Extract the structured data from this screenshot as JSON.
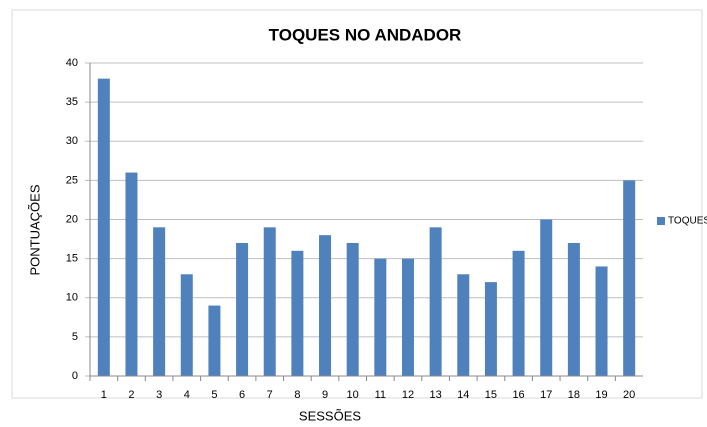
{
  "chart_data": {
    "type": "bar",
    "title": "TOQUES NO ANDADOR",
    "x_label": "SESSÕES",
    "y_label": "PONTUAÇÕES",
    "categories": [
      "1",
      "2",
      "3",
      "4",
      "5",
      "6",
      "7",
      "8",
      "9",
      "10",
      "11",
      "12",
      "13",
      "14",
      "15",
      "16",
      "17",
      "18",
      "19",
      "20"
    ],
    "series": [
      {
        "name": "TOQUES",
        "color": "#4f81bd",
        "values": [
          38,
          26,
          19,
          13,
          9,
          17,
          19,
          16,
          18,
          17,
          15,
          15,
          19,
          13,
          12,
          16,
          20,
          17,
          14,
          25
        ]
      }
    ],
    "ylim": [
      0,
      40
    ],
    "yticks": [
      0,
      5,
      10,
      15,
      20,
      25,
      30,
      35,
      40
    ],
    "grid": true,
    "legend": "right"
  }
}
